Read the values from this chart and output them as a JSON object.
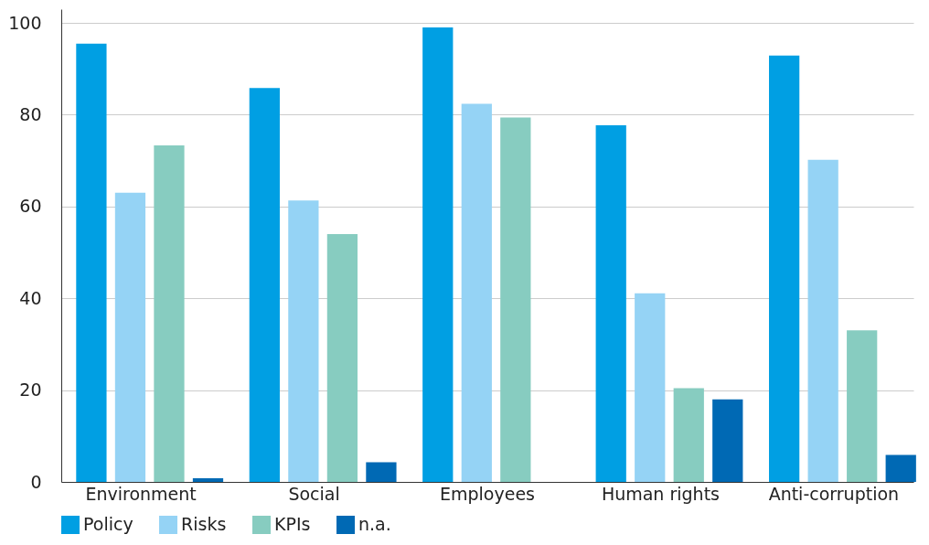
{
  "chart_data": {
    "type": "bar",
    "categories": [
      "Environment",
      "Social",
      "Employees",
      "Human rights",
      "Anti-corruption"
    ],
    "series": [
      {
        "name": "Policy",
        "color": "#009fe3",
        "values": [
          95.5,
          85.8,
          99,
          77.7,
          92.9
        ]
      },
      {
        "name": "Risks",
        "color": "#95d3f5",
        "values": [
          63,
          61.3,
          82.4,
          41.1,
          70.2
        ]
      },
      {
        "name": "KPIs",
        "color": "#87ccc0",
        "values": [
          73.3,
          54,
          79.4,
          20.4,
          33
        ]
      },
      {
        "name": "n.a.",
        "color": "#0069b4",
        "values": [
          0.8,
          4.3,
          null,
          18,
          5.9
        ]
      }
    ],
    "ylim": [
      0,
      103
    ],
    "yticks": [
      0,
      20,
      40,
      60,
      80,
      100
    ],
    "grid": "y",
    "legend": "bottom"
  }
}
